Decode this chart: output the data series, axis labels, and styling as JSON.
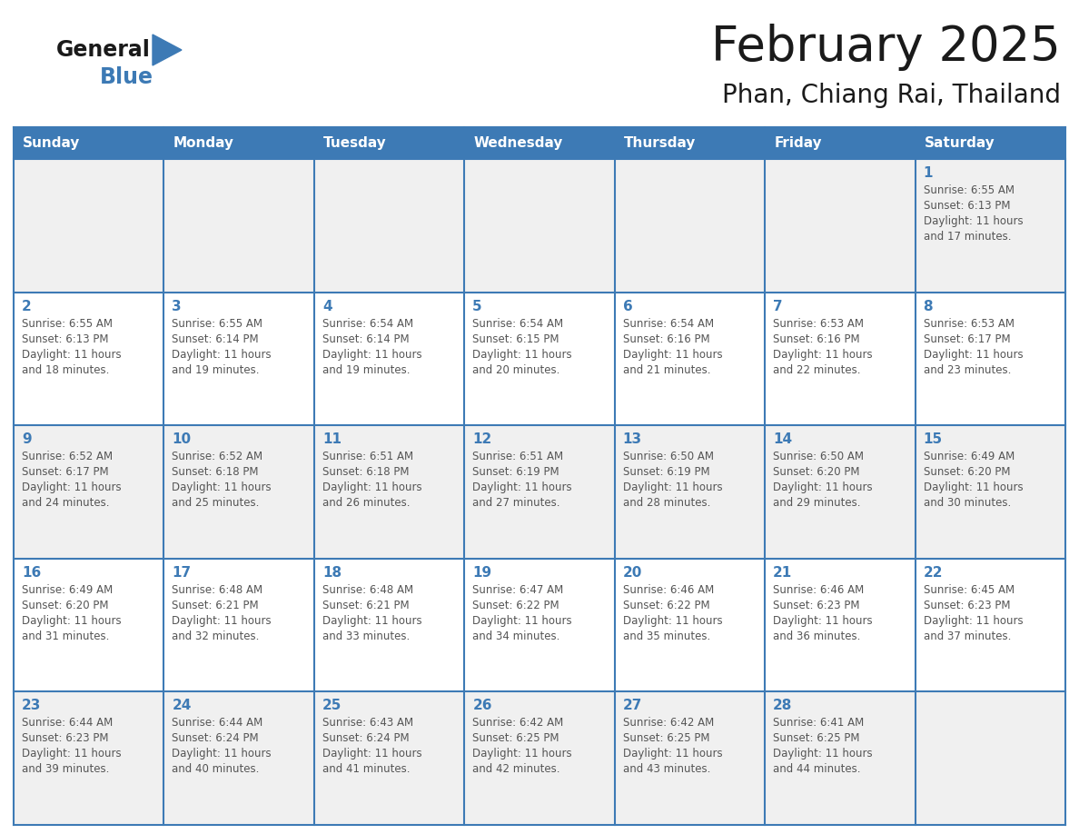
{
  "title": "February 2025",
  "subtitle": "Phan, Chiang Rai, Thailand",
  "days_of_week": [
    "Sunday",
    "Monday",
    "Tuesday",
    "Wednesday",
    "Thursday",
    "Friday",
    "Saturday"
  ],
  "header_bg": "#3d7ab5",
  "header_text": "#ffffff",
  "cell_bg_row0": "#f0f0f0",
  "cell_bg_row1": "#ffffff",
  "cell_bg_row2": "#f0f0f0",
  "cell_bg_row3": "#ffffff",
  "cell_bg_row4": "#f0f0f0",
  "border_color": "#3d7ab5",
  "text_color": "#555555",
  "day_num_color": "#3d7ab5",
  "calendar_data": [
    [
      null,
      null,
      null,
      null,
      null,
      null,
      {
        "day": 1,
        "sunrise": "6:55 AM",
        "sunset": "6:13 PM",
        "daylight": "11 hours and 17 minutes."
      }
    ],
    [
      {
        "day": 2,
        "sunrise": "6:55 AM",
        "sunset": "6:13 PM",
        "daylight": "11 hours and 18 minutes."
      },
      {
        "day": 3,
        "sunrise": "6:55 AM",
        "sunset": "6:14 PM",
        "daylight": "11 hours and 19 minutes."
      },
      {
        "day": 4,
        "sunrise": "6:54 AM",
        "sunset": "6:14 PM",
        "daylight": "11 hours and 19 minutes."
      },
      {
        "day": 5,
        "sunrise": "6:54 AM",
        "sunset": "6:15 PM",
        "daylight": "11 hours and 20 minutes."
      },
      {
        "day": 6,
        "sunrise": "6:54 AM",
        "sunset": "6:16 PM",
        "daylight": "11 hours and 21 minutes."
      },
      {
        "day": 7,
        "sunrise": "6:53 AM",
        "sunset": "6:16 PM",
        "daylight": "11 hours and 22 minutes."
      },
      {
        "day": 8,
        "sunrise": "6:53 AM",
        "sunset": "6:17 PM",
        "daylight": "11 hours and 23 minutes."
      }
    ],
    [
      {
        "day": 9,
        "sunrise": "6:52 AM",
        "sunset": "6:17 PM",
        "daylight": "11 hours and 24 minutes."
      },
      {
        "day": 10,
        "sunrise": "6:52 AM",
        "sunset": "6:18 PM",
        "daylight": "11 hours and 25 minutes."
      },
      {
        "day": 11,
        "sunrise": "6:51 AM",
        "sunset": "6:18 PM",
        "daylight": "11 hours and 26 minutes."
      },
      {
        "day": 12,
        "sunrise": "6:51 AM",
        "sunset": "6:19 PM",
        "daylight": "11 hours and 27 minutes."
      },
      {
        "day": 13,
        "sunrise": "6:50 AM",
        "sunset": "6:19 PM",
        "daylight": "11 hours and 28 minutes."
      },
      {
        "day": 14,
        "sunrise": "6:50 AM",
        "sunset": "6:20 PM",
        "daylight": "11 hours and 29 minutes."
      },
      {
        "day": 15,
        "sunrise": "6:49 AM",
        "sunset": "6:20 PM",
        "daylight": "11 hours and 30 minutes."
      }
    ],
    [
      {
        "day": 16,
        "sunrise": "6:49 AM",
        "sunset": "6:20 PM",
        "daylight": "11 hours and 31 minutes."
      },
      {
        "day": 17,
        "sunrise": "6:48 AM",
        "sunset": "6:21 PM",
        "daylight": "11 hours and 32 minutes."
      },
      {
        "day": 18,
        "sunrise": "6:48 AM",
        "sunset": "6:21 PM",
        "daylight": "11 hours and 33 minutes."
      },
      {
        "day": 19,
        "sunrise": "6:47 AM",
        "sunset": "6:22 PM",
        "daylight": "11 hours and 34 minutes."
      },
      {
        "day": 20,
        "sunrise": "6:46 AM",
        "sunset": "6:22 PM",
        "daylight": "11 hours and 35 minutes."
      },
      {
        "day": 21,
        "sunrise": "6:46 AM",
        "sunset": "6:23 PM",
        "daylight": "11 hours and 36 minutes."
      },
      {
        "day": 22,
        "sunrise": "6:45 AM",
        "sunset": "6:23 PM",
        "daylight": "11 hours and 37 minutes."
      }
    ],
    [
      {
        "day": 23,
        "sunrise": "6:44 AM",
        "sunset": "6:23 PM",
        "daylight": "11 hours and 39 minutes."
      },
      {
        "day": 24,
        "sunrise": "6:44 AM",
        "sunset": "6:24 PM",
        "daylight": "11 hours and 40 minutes."
      },
      {
        "day": 25,
        "sunrise": "6:43 AM",
        "sunset": "6:24 PM",
        "daylight": "11 hours and 41 minutes."
      },
      {
        "day": 26,
        "sunrise": "6:42 AM",
        "sunset": "6:25 PM",
        "daylight": "11 hours and 42 minutes."
      },
      {
        "day": 27,
        "sunrise": "6:42 AM",
        "sunset": "6:25 PM",
        "daylight": "11 hours and 43 minutes."
      },
      {
        "day": 28,
        "sunrise": "6:41 AM",
        "sunset": "6:25 PM",
        "daylight": "11 hours and 44 minutes."
      },
      null
    ]
  ],
  "logo_text_general": "General",
  "logo_text_blue": "Blue",
  "logo_general_color": "#1a1a1a",
  "logo_blue_color": "#3d7ab5",
  "logo_triangle_color": "#3d7ab5",
  "title_color": "#1a1a1a",
  "subtitle_color": "#1a1a1a"
}
